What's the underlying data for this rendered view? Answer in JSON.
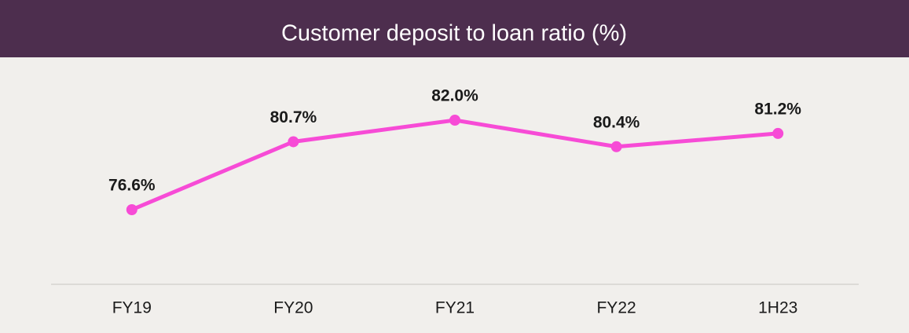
{
  "chart_data": {
    "type": "line",
    "title": "Customer deposit to loan ratio (%)",
    "categories": [
      "FY19",
      "FY20",
      "FY21",
      "FY22",
      "1H23"
    ],
    "values": [
      76.6,
      80.7,
      82.0,
      80.4,
      81.2
    ],
    "value_labels": [
      "76.6%",
      "80.7%",
      "82.0%",
      "80.4%",
      "81.2%"
    ],
    "color": "#f74bd6"
  }
}
